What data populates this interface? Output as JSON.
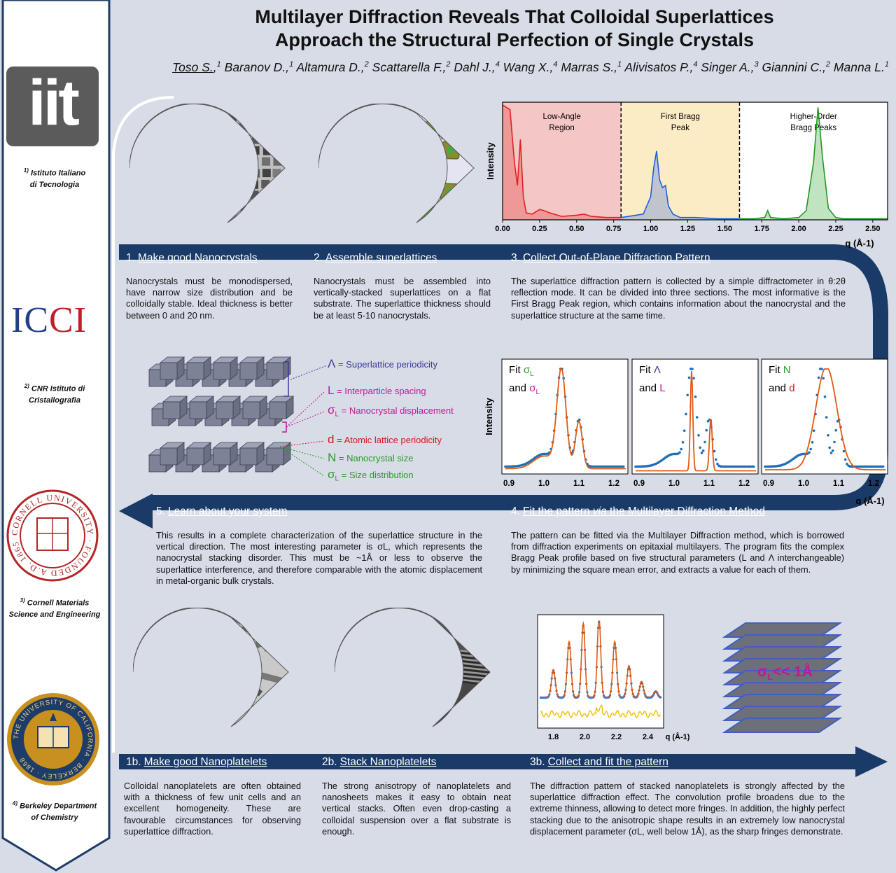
{
  "title_line1": "Multilayer Diffraction Reveals That Colloidal Superlattices",
  "title_line2": "Approach the Structural Perfection of Single Crystals",
  "authors": {
    "first": "Toso S.",
    "rest": [
      {
        "sup": "1",
        "name": " Baranov D.,"
      },
      {
        "sup": "1",
        "name": " Altamura D.,"
      },
      {
        "sup": "2",
        "name": " Scattarella F.,"
      },
      {
        "sup": "2",
        "name": " Dahl J.,"
      },
      {
        "sup": "4",
        "name": " Wang X.,"
      },
      {
        "sup": "4",
        "name": " Marras S.,"
      },
      {
        "sup": "1",
        "name": " Alivisatos P.,"
      },
      {
        "sup": "4",
        "name": " Singer A.,"
      },
      {
        "sup": "3",
        "name": " Giannini C.,"
      },
      {
        "sup": "2",
        "name": " Manna L."
      },
      {
        "sup": "1",
        "name": ""
      }
    ]
  },
  "sidebar": {
    "iit_logo": "iit",
    "aff1_sup": "1)",
    "aff1_l1": "Istituto Italiano",
    "aff1_l2": "di Tecnologia",
    "ic_logo_left": "IC",
    "ic_logo_right": "CI",
    "aff2_sup": "2)",
    "aff2_l1": "CNR Istituto di",
    "aff2_l2": "Cristallografia",
    "cornell_seal": "CORNELL UNIVERSITY · FOUNDED A.D. 1865",
    "aff3_sup": "3)",
    "aff3_l1": "Cornell Materials",
    "aff3_l2": "Science and Engineering",
    "berkeley_seal": "THE UNIVERSITY OF CALIFORNIA · BERKELEY · 1868",
    "aff4_sup": "4)",
    "aff4_l1": "Berkeley Department",
    "aff4_l2": "of Chemistry"
  },
  "sections": {
    "s1": {
      "num": "1.",
      "title": "Make good Nanocrystals",
      "text": "Nanocrystals must be monodispersed, have narrow size distribution and be colloidally stable. Ideal thickness is better between 0 and 20 nm."
    },
    "s2": {
      "num": "2.",
      "title": "Assemble superlattices",
      "text": "Nanocrystals must be assembled into vertically-stacked superlattices on a flat substrate. The superlattice thickness should be at least 5-10 nanocrystals."
    },
    "s3": {
      "num": "3.",
      "title": "Collect Out-of-Plane Diffraction Pattern",
      "text": "The superlattice diffraction pattern is collected by a simple diffractometer in θ:2θ reflection mode. It can be divided into three sections. The most informative is the First Bragg Peak region, which contains information about the nanocrystal and the superlattice structure at the same time."
    },
    "s4": {
      "num": "4.",
      "title_a": "Fit the pattern ",
      "title_b": "via",
      "title_c": " the Multilayer Diffraction Method",
      "text": "The pattern can be fitted via the Multilayer Diffraction method, which is borrowed from diffraction experiments on epitaxial multilayers. The program fits the complex Bragg Peak profile based on five structural parameters (L and Λ interchangeable) by minimizing the square mean error, and extracts a value for each of them."
    },
    "s5": {
      "num": "5.",
      "title": "Learn about your system",
      "text": "This results in a complete characterization of the superlattice structure in the vertical direction. The most interesting parameter is σL, which represents the nanocrystal stacking disorder. This must be ~1Å or less to observe the superlattice interference, and therefore comparable with the atomic displacement in metal-organic bulk crystals."
    },
    "s1b": {
      "num": "1b.",
      "title": "Make good Nanoplatelets",
      "text": "Colloidal nanoplatelets are often obtained with a thickness of few unit cells and an excellent homogeneity. These are favourable circumstances for observing superlattice diffraction."
    },
    "s2b": {
      "num": "2b.",
      "title": "Stack Nanoplatelets",
      "text": "The strong anisotropy of nanoplatelets and nanosheets makes it easy to obtain neat vertical stacks. Often even drop-casting a colloidal suspension over a flat substrate is enough."
    },
    "s3b": {
      "num": "3b.",
      "title": "Collect and fit the pattern",
      "text": "The diffraction pattern of stacked nanoplatelets is strongly affected by the superlattice diffraction effect. The convolution profile broadens due to the extreme thinness, allowing to detect more fringes. In addition, the highly perfect stacking due to the anisotropic shape results in an extremely low nanocrystal displacement parameter (σL, well below 1Å), as the sharp fringes demonstrate."
    }
  },
  "legend": {
    "lambda": {
      "sym": "Λ",
      "text": " = Superlattice periodicity",
      "color": "#3a3a9a"
    },
    "L": {
      "sym": "L",
      "text": " = Interparticle spacing",
      "color": "#c0189a"
    },
    "sigL": {
      "sym": "σ",
      "sub": "L",
      "text": " = Nanocrystal displacement",
      "color": "#c0189a"
    },
    "d": {
      "sym": "d",
      "text": " = Atomic lattice periodicity",
      "color": "#d01818"
    },
    "N": {
      "sym": "N",
      "text": " = Nanocrystal size",
      "color": "#2a9a2a"
    },
    "sigN": {
      "sym": "σ",
      "sub": "L",
      "text": " = Size distribution",
      "color": "#2a9a2a"
    }
  },
  "sigma_badge": {
    "sym": "σ",
    "sub": "L",
    "text": "<< 1Å"
  },
  "chart_data": [
    {
      "type": "line",
      "title": "",
      "xlabel": "q (Å-1)",
      "ylabel": "Intensity",
      "xlim": [
        0.0,
        2.6
      ],
      "xticks": [
        "0.00",
        "0.25",
        "0.50",
        "0.75",
        "1.00",
        "1.25",
        "1.50",
        "1.75",
        "2.00",
        "2.25",
        "2.50"
      ],
      "regions": [
        {
          "label_l1": "Low-Angle",
          "label_l2": "Region",
          "x": [
            0.0,
            0.8
          ],
          "color": "#f5c6c6"
        },
        {
          "label_l1": "First Bragg",
          "label_l2": "Peak",
          "x": [
            0.8,
            1.6
          ],
          "color": "#fcecc6"
        },
        {
          "label_l1": "Higher-Order",
          "label_l2": "Bragg Peaks",
          "x": [
            1.6,
            2.6
          ],
          "color": "#ffffff"
        }
      ],
      "series": [
        {
          "color": "#e02020",
          "x": [
            0.0,
            0.05,
            0.08,
            0.1,
            0.12,
            0.14,
            0.16,
            0.2,
            0.25,
            0.28,
            0.32,
            0.4,
            0.5,
            0.55,
            0.6,
            0.7,
            0.8
          ],
          "y": [
            1.0,
            0.96,
            0.5,
            0.3,
            0.7,
            0.2,
            0.06,
            0.05,
            0.09,
            0.08,
            0.06,
            0.03,
            0.04,
            0.05,
            0.03,
            0.02,
            0.02
          ]
        },
        {
          "color": "#1f5fe0",
          "x": [
            0.8,
            0.85,
            0.9,
            0.95,
            1.0,
            1.02,
            1.04,
            1.06,
            1.08,
            1.1,
            1.12,
            1.15,
            1.2,
            1.3,
            1.45,
            1.6
          ],
          "y": [
            0.02,
            0.03,
            0.04,
            0.05,
            0.2,
            0.45,
            0.6,
            0.35,
            0.28,
            0.3,
            0.12,
            0.05,
            0.02,
            0.02,
            0.01,
            0.01
          ]
        },
        {
          "color": "#1e9a1e",
          "x": [
            1.6,
            1.7,
            1.77,
            1.79,
            1.81,
            1.9,
            2.0,
            2.05,
            2.1,
            2.13,
            2.16,
            2.2,
            2.25,
            2.3,
            2.4,
            2.6
          ],
          "y": [
            0.01,
            0.01,
            0.02,
            0.08,
            0.02,
            0.01,
            0.02,
            0.08,
            0.5,
            0.98,
            0.55,
            0.1,
            0.02,
            0.01,
            0.01,
            0.01
          ]
        }
      ]
    },
    {
      "type": "line",
      "title": "",
      "panels": [
        {
          "label_a": "Fit ",
          "sym1": "σ",
          "sub1": "L",
          "sym1_color": "#2a9a2a",
          "label_b": "and ",
          "sym2": "σ",
          "sub2": "L",
          "sym2_color": "#c0189a"
        },
        {
          "label_a": "Fit ",
          "sym1": "Λ",
          "sub1": "",
          "sym1_color": "#3a3a9a",
          "label_b": "and ",
          "sym2": "L",
          "sub2": "",
          "sym2_color": "#c0189a"
        },
        {
          "label_a": "Fit ",
          "sym1": "N",
          "sub1": "",
          "sym1_color": "#2a9a2a",
          "label_b": "and ",
          "sym2": "d",
          "sub2": "",
          "sym2_color": "#d01818"
        }
      ],
      "ylabel": "Intensity",
      "xlabel": "q (Å-1)",
      "xticks": [
        "0.9",
        "1.0",
        "1.1",
        "1.2"
      ],
      "xlim": [
        0.88,
        1.24
      ]
    },
    {
      "type": "line",
      "title": "",
      "xlabel": "q (Å-1)",
      "xticks": [
        "1.8",
        "2.0",
        "2.2",
        "2.4"
      ],
      "xlim": [
        1.7,
        2.5
      ],
      "series": [
        {
          "name": "",
          "color": "#1f6fd0"
        },
        {
          "name": "",
          "color": "#e05a10"
        },
        {
          "name": "",
          "color": "#f0c000"
        }
      ]
    }
  ]
}
